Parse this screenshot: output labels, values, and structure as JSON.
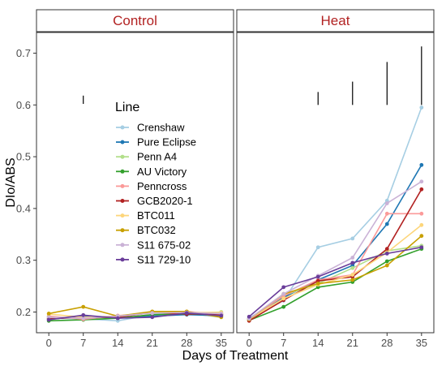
{
  "chart_data": {
    "type": "line",
    "facets": [
      "Control",
      "Heat"
    ],
    "xlabel": "Days of Treatment",
    "ylabel": "DIo/ABS",
    "x": [
      0,
      7,
      14,
      21,
      28,
      35
    ],
    "x_ticks": [
      "0",
      "7",
      "14",
      "21",
      "28",
      "35"
    ],
    "y_ticks": [
      "0.2",
      "0.3",
      "0.4",
      "0.5",
      "0.6",
      "0.7"
    ],
    "xlim": [
      -2.5,
      37.5
    ],
    "ylim": [
      0.16,
      0.74
    ],
    "legend_title": "Line",
    "legend_position": "inside-left",
    "grid": false,
    "series": [
      {
        "name": "Crenshaw",
        "color": "#a6cee3",
        "Control": [
          0.188,
          0.187,
          0.183,
          0.195,
          0.198,
          0.19
        ],
        "Heat": [
          0.186,
          0.222,
          0.325,
          0.342,
          0.415,
          0.595
        ]
      },
      {
        "name": "Pure Eclipse",
        "color": "#1f78b4",
        "Control": [
          0.186,
          0.192,
          0.188,
          0.192,
          0.195,
          0.193
        ],
        "Heat": [
          0.188,
          0.228,
          0.262,
          0.29,
          0.37,
          0.484
        ]
      },
      {
        "name": "Penn A4",
        "color": "#b2df8a",
        "Control": [
          0.19,
          0.188,
          0.19,
          0.2,
          0.197,
          0.2
        ],
        "Heat": [
          0.185,
          0.232,
          0.255,
          0.285,
          0.318,
          0.328
        ]
      },
      {
        "name": "AU Victory",
        "color": "#33a02c",
        "Control": [
          0.183,
          0.185,
          0.188,
          0.195,
          0.196,
          0.195
        ],
        "Heat": [
          0.184,
          0.21,
          0.248,
          0.258,
          0.298,
          0.322
        ]
      },
      {
        "name": "Penncross",
        "color": "#fb9a99",
        "Control": [
          0.192,
          0.186,
          0.193,
          0.198,
          0.201,
          0.195
        ],
        "Heat": [
          0.187,
          0.231,
          0.262,
          0.272,
          0.39,
          0.39
        ]
      },
      {
        "name": "GCB2020-1",
        "color": "#b22222",
        "Control": [
          0.187,
          0.19,
          0.19,
          0.199,
          0.196,
          0.196
        ],
        "Heat": [
          0.183,
          0.223,
          0.26,
          0.268,
          0.322,
          0.437
        ]
      },
      {
        "name": "BTC011",
        "color": "#fdd67b",
        "Control": [
          0.196,
          0.19,
          0.192,
          0.2,
          0.199,
          0.199
        ],
        "Heat": [
          0.186,
          0.226,
          0.253,
          0.272,
          0.315,
          0.368
        ]
      },
      {
        "name": "BTC032",
        "color": "#c8a000",
        "Control": [
          0.197,
          0.21,
          0.192,
          0.201,
          0.201,
          0.19
        ],
        "Heat": [
          0.186,
          0.235,
          0.255,
          0.262,
          0.29,
          0.347
        ]
      },
      {
        "name": "S11 675-02",
        "color": "#cab2d6",
        "Control": [
          0.19,
          0.188,
          0.192,
          0.198,
          0.199,
          0.197
        ],
        "Heat": [
          0.187,
          0.235,
          0.27,
          0.305,
          0.41,
          0.452
        ]
      },
      {
        "name": "S11 729-10",
        "color": "#6a3d9a",
        "Control": [
          0.185,
          0.194,
          0.188,
          0.19,
          0.198,
          0.193
        ],
        "Heat": [
          0.191,
          0.248,
          0.268,
          0.295,
          0.313,
          0.325
        ]
      }
    ],
    "error_bars": {
      "Control": [
        {
          "x": 7,
          "y_low": 0.602,
          "y_high": 0.618
        }
      ],
      "Heat": [
        {
          "x": 14,
          "y_low": 0.6,
          "y_high": 0.625
        },
        {
          "x": 21,
          "y_low": 0.6,
          "y_high": 0.645
        },
        {
          "x": 28,
          "y_low": 0.6,
          "y_high": 0.683
        },
        {
          "x": 35,
          "y_low": 0.6,
          "y_high": 0.713
        }
      ]
    }
  }
}
